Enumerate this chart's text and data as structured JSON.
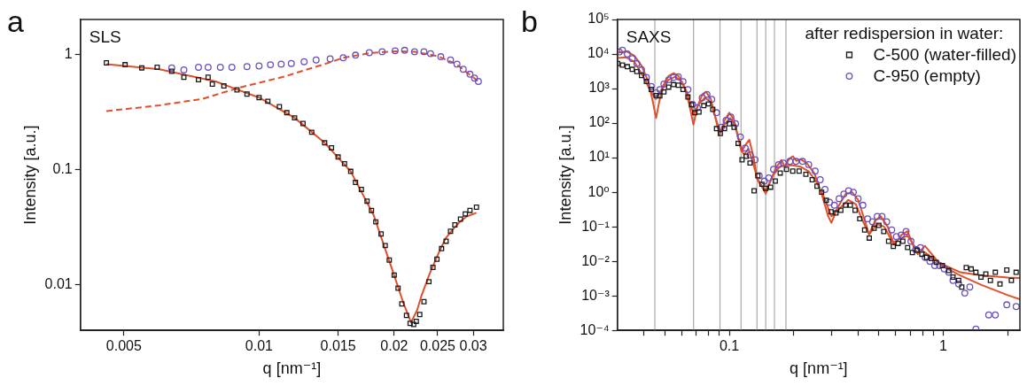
{
  "chart_data": [
    {
      "type": "scatter",
      "title": "SLS",
      "annotations": [
        "a"
      ],
      "xlabel": "q [nm⁻¹]",
      "ylabel": "Intensity [a.u.]",
      "log": "xy",
      "xlim": [
        0.004,
        0.035
      ],
      "ylim": [
        0.004,
        2
      ],
      "xticks": [
        0.005,
        0.01,
        0.015,
        0.02,
        0.025,
        0.03
      ],
      "yticks": [
        0.01,
        0.1,
        1
      ],
      "series": [
        {
          "type": "scatter",
          "marker": "square",
          "color": "#1a1a1a",
          "x": [
            0.00457,
            0.00503,
            0.00548,
            0.00593,
            0.00639,
            0.0068,
            0.00733,
            0.0077,
            0.00787,
            0.00835,
            0.00893,
            0.0094,
            0.01,
            0.01046,
            0.0111,
            0.01153,
            0.012,
            0.01253,
            0.0131,
            0.014,
            0.0145,
            0.015,
            0.0155,
            0.016,
            0.0164,
            0.0169,
            0.0174,
            0.0178,
            0.0182,
            0.0187,
            0.0191,
            0.0195,
            0.02,
            0.0204,
            0.0208,
            0.0213,
            0.0217,
            0.0221,
            0.0224,
            0.0228,
            0.0233,
            0.0239,
            0.0244,
            0.0249,
            0.0255,
            0.0261,
            0.0267,
            0.0273,
            0.0281,
            0.0288,
            0.0295,
            0.0305
          ],
          "values": [
            0.84,
            0.81,
            0.76,
            0.77,
            0.71,
            0.63,
            0.6,
            0.63,
            0.55,
            0.53,
            0.49,
            0.45,
            0.42,
            0.39,
            0.35,
            0.31,
            0.28,
            0.25,
            0.21,
            0.17,
            0.154,
            0.128,
            0.112,
            0.096,
            0.077,
            0.067,
            0.053,
            0.044,
            0.035,
            0.0275,
            0.0218,
            0.0163,
            0.0121,
            0.0093,
            0.0068,
            0.0054,
            0.0046,
            0.0045,
            0.0048,
            0.0055,
            0.0071,
            0.0106,
            0.0141,
            0.0166,
            0.0205,
            0.0238,
            0.029,
            0.033,
            0.037,
            0.041,
            0.044,
            0.047
          ]
        },
        {
          "type": "scatter",
          "marker": "circle",
          "color": "#6b4fbf",
          "x": [
            0.00639,
            0.0068,
            0.00733,
            0.0077,
            0.0082,
            0.0087,
            0.0094,
            0.01,
            0.0106,
            0.0112,
            0.0118,
            0.0126,
            0.0134,
            0.0144,
            0.0154,
            0.0164,
            0.0176,
            0.0188,
            0.0201,
            0.0211,
            0.0222,
            0.0233,
            0.0241,
            0.0254,
            0.0267,
            0.0276,
            0.0285,
            0.0295,
            0.0302,
            0.0308
          ],
          "values": [
            0.76,
            0.73,
            0.77,
            0.77,
            0.77,
            0.77,
            0.78,
            0.79,
            0.81,
            0.82,
            0.83,
            0.86,
            0.89,
            0.91,
            0.93,
            0.98,
            1.03,
            1.05,
            1.07,
            1.08,
            1.05,
            1.05,
            1.01,
            0.95,
            0.89,
            0.82,
            0.74,
            0.67,
            0.62,
            0.58
          ]
        },
        {
          "type": "line",
          "marker": "none",
          "line_style": "solid",
          "color": "#e0502a",
          "x": [
            0.00457,
            0.006,
            0.008,
            0.01,
            0.012,
            0.014,
            0.016,
            0.018,
            0.02,
            0.021,
            0.0218,
            0.0225,
            0.023,
            0.024,
            0.025,
            0.026,
            0.027,
            0.028,
            0.029,
            0.0305
          ],
          "values": [
            0.82,
            0.74,
            0.58,
            0.42,
            0.28,
            0.17,
            0.096,
            0.04,
            0.012,
            0.0068,
            0.0047,
            0.006,
            0.008,
            0.0125,
            0.018,
            0.025,
            0.03,
            0.035,
            0.039,
            0.042
          ]
        },
        {
          "type": "line",
          "marker": "none",
          "line_style": "dashed",
          "color": "#e0502a",
          "x": [
            0.00457,
            0.006,
            0.0075,
            0.009,
            0.0114,
            0.0144,
            0.0154,
            0.0176,
            0.0201,
            0.0222,
            0.025,
            0.0275,
            0.0295,
            0.0308
          ],
          "values": [
            0.32,
            0.36,
            0.41,
            0.51,
            0.64,
            0.85,
            0.93,
            1.02,
            1.06,
            1.05,
            0.96,
            0.82,
            0.66,
            0.58
          ]
        }
      ]
    },
    {
      "type": "scatter",
      "title": "SAXS",
      "annotations": [
        "b"
      ],
      "xlabel": "q [nm⁻¹]",
      "ylabel": "Intensity [a.u.]",
      "log": "xy",
      "legend": "top right",
      "legend_title": "after redispersion in water:",
      "xlim": [
        0.03,
        2.28
      ],
      "ylim": [
        0.0001,
        100000
      ],
      "xticks": [
        {
          "value": 0.04,
          "label": null
        },
        {
          "value": 0.05,
          "label": null
        },
        {
          "value": 0.06,
          "label": null
        },
        {
          "value": 0.07,
          "label": null
        },
        {
          "value": 0.08,
          "label": null
        },
        {
          "value": 0.09,
          "label": null
        },
        0.1,
        {
          "value": 0.2,
          "label": null
        },
        {
          "value": 0.3,
          "label": null
        },
        {
          "value": 0.4,
          "label": null
        },
        {
          "value": 0.5,
          "label": null
        },
        {
          "value": 0.6,
          "label": null
        },
        {
          "value": 0.7,
          "label": null
        },
        {
          "value": 0.8,
          "label": null
        },
        {
          "value": 0.9,
          "label": null
        },
        1,
        {
          "value": 2,
          "label": null
        }
      ],
      "yticks": [
        {
          "value": 0.0001,
          "label": "10⁻⁴"
        },
        {
          "value": 0.001,
          "label": "10⁻³"
        },
        {
          "value": 0.01,
          "label": "10⁻²"
        },
        {
          "value": 0.1,
          "label": "10⁻¹"
        },
        {
          "value": 1,
          "label": "10⁰"
        },
        {
          "value": 10,
          "label": "10¹"
        },
        {
          "value": 100,
          "label": "10²"
        },
        {
          "value": 1000,
          "label": "10³"
        },
        {
          "value": 10000,
          "label": "10⁴"
        },
        {
          "value": 100000,
          "label": "10⁵"
        }
      ],
      "ref_lines": [
        {
          "axis": "x",
          "value": 0.0449,
          "color": "#aaaaaa"
        },
        {
          "axis": "x",
          "value": 0.0681,
          "color": "#aaaaaa"
        },
        {
          "axis": "x",
          "value": 0.0905,
          "color": "#aaaaaa"
        },
        {
          "axis": "x",
          "value": 0.1135,
          "color": "#aaaaaa"
        },
        {
          "axis": "x",
          "value": 0.1347,
          "color": "#aaaaaa"
        },
        {
          "axis": "x",
          "value": 0.148,
          "color": "#aaaaaa"
        },
        {
          "axis": "x",
          "value": 0.1626,
          "color": "#aaaaaa"
        },
        {
          "axis": "x",
          "value": 0.184,
          "color": "#aaaaaa"
        }
      ],
      "series": [
        {
          "type": "scatter",
          "name": "C-500 (water-filled)",
          "marker": "square",
          "color": "#1a1a1a",
          "x": [
            0.0301,
            0.0317,
            0.0334,
            0.0352,
            0.037,
            0.0389,
            0.041,
            0.0432,
            0.0455,
            0.0474,
            0.0495,
            0.0521,
            0.0549,
            0.0578,
            0.0608,
            0.0641,
            0.0667,
            0.069,
            0.0722,
            0.076,
            0.08,
            0.0837,
            0.0872,
            0.0908,
            0.095,
            0.1,
            0.1053,
            0.11,
            0.1147,
            0.12,
            0.125,
            0.1306,
            0.136,
            0.142,
            0.148,
            0.156,
            0.164,
            0.173,
            0.185,
            0.198,
            0.212,
            0.228,
            0.244,
            0.257,
            0.27,
            0.284,
            0.299,
            0.315,
            0.332,
            0.349,
            0.368,
            0.387,
            0.407,
            0.429,
            0.451,
            0.475,
            0.5,
            0.527,
            0.555,
            0.584,
            0.615,
            0.647,
            0.681,
            0.717,
            0.754,
            0.794,
            0.836,
            0.88,
            0.927,
            0.99,
            1.06,
            1.11,
            1.18,
            1.22,
            1.28,
            1.35,
            1.42,
            1.5,
            1.58,
            1.66,
            1.75,
            1.84,
            1.98,
            2.08,
            2.19
          ],
          "values": [
            5300,
            4800,
            4300,
            3600,
            3100,
            2400,
            1600,
            940,
            630,
            620,
            800,
            1100,
            1300,
            1250,
            940,
            570,
            340,
            200,
            210,
            320,
            360,
            250,
            69,
            50,
            69,
            96,
            76,
            26,
            8.7,
            11,
            7,
            1.1,
            3,
            1.7,
            1.3,
            1.4,
            2.1,
            3.6,
            4.6,
            4.1,
            4.1,
            3.3,
            2.3,
            1.5,
            1,
            0.58,
            0.27,
            0.25,
            0.3,
            0.42,
            0.42,
            0.3,
            0.17,
            0.081,
            0.047,
            0.091,
            0.11,
            0.073,
            0.038,
            0.027,
            0.033,
            0.038,
            0.025,
            0.018,
            0.021,
            0.016,
            0.013,
            0.012,
            0.0093,
            0.0075,
            0.0054,
            0.0035,
            0.0028,
            0.0018,
            0.0066,
            0.006,
            0.0048,
            0.0035,
            0.0043,
            0.0028,
            0.0048,
            0.0022,
            0.0056,
            0.0028,
            0.0048
          ]
        },
        {
          "type": "scatter",
          "name": "C-950 (empty)",
          "marker": "circle",
          "color": "#6b4fbf",
          "x": [
            0.0306,
            0.0317,
            0.0334,
            0.0352,
            0.037,
            0.0389,
            0.041,
            0.0432,
            0.0455,
            0.0474,
            0.0495,
            0.0521,
            0.0549,
            0.0578,
            0.0608,
            0.0641,
            0.0674,
            0.071,
            0.0747,
            0.0787,
            0.0828,
            0.0872,
            0.0918,
            0.0966,
            0.1017,
            0.107,
            0.1127,
            0.1187,
            0.125,
            0.132,
            0.138,
            0.146,
            0.153,
            0.161,
            0.17,
            0.179,
            0.192,
            0.205,
            0.22,
            0.235,
            0.252,
            0.266,
            0.28,
            0.294,
            0.31,
            0.326,
            0.343,
            0.361,
            0.38,
            0.4,
            0.421,
            0.443,
            0.467,
            0.491,
            0.517,
            0.544,
            0.574,
            0.604,
            0.636,
            0.67,
            0.706,
            0.743,
            0.782,
            0.823,
            0.866,
            0.912,
            0.96,
            1.01,
            1.06,
            1.11,
            1.18,
            1.26,
            1.33,
            1.42,
            1.63,
            1.75,
            1.98,
            2.19
          ],
          "values": [
            11500,
            13000,
            10000,
            7400,
            5300,
            3500,
            2100,
            1150,
            760,
            940,
            1350,
            1800,
            2100,
            2200,
            1600,
            940,
            350,
            280,
            540,
            680,
            490,
            200,
            76,
            120,
            150,
            96,
            40,
            19,
            12,
            8.7,
            3,
            2.1,
            2.6,
            4.6,
            6.3,
            7,
            7.8,
            7.8,
            7.8,
            6.3,
            4.1,
            2.3,
            1.2,
            0.51,
            0.42,
            0.65,
            0.89,
            1.1,
            1,
            0.65,
            0.42,
            0.17,
            0.14,
            0.2,
            0.2,
            0.14,
            0.081,
            0.052,
            0.058,
            0.073,
            0.038,
            0.022,
            0.025,
            0.013,
            0.01,
            0.0075,
            0.0075,
            0.006,
            0.0048,
            0.0028,
            0.0022,
            0.0012,
            0.0018,
            0.00011,
            0.00028,
            0.00028,
            0.00055,
            0.00049
          ]
        },
        {
          "type": "line",
          "marker": "none",
          "line_style": "solid",
          "color": "#e0502a",
          "x": [
            0.03,
            0.033,
            0.036,
            0.039,
            0.042,
            0.044,
            0.0455,
            0.047,
            0.049,
            0.052,
            0.055,
            0.058,
            0.062,
            0.065,
            0.068,
            0.071,
            0.075,
            0.078,
            0.082,
            0.086,
            0.09,
            0.095,
            0.1,
            0.105,
            0.11,
            0.114,
            0.12,
            0.124,
            0.13,
            0.135,
            0.141,
            0.148,
            0.155,
            0.165,
            0.175,
            0.182,
            0.19,
            0.198,
            0.206,
            0.215,
            0.23,
            0.25,
            0.27,
            0.29,
            0.3,
            0.32,
            0.35,
            0.375,
            0.4,
            0.43,
            0.45,
            0.48,
            0.51,
            0.55,
            0.59,
            0.64,
            0.68,
            0.73,
            0.76,
            0.82,
            0.87,
            0.93,
            1,
            1.2,
            1.5,
            2,
            2.28
          ],
          "values": [
            11000,
            12000,
            9000,
            4500,
            1500,
            400,
            140,
            400,
            1200,
            2300,
            2800,
            2300,
            1000,
            350,
            90,
            300,
            700,
            800,
            500,
            150,
            45,
            120,
            200,
            130,
            40,
            15,
            25,
            33,
            10,
            2.5,
            1.6,
            0.9,
            2,
            5,
            8.5,
            5.5,
            9,
            11,
            8,
            9,
            7,
            3.5,
            0.9,
            0.2,
            0.13,
            0.35,
            0.9,
            1,
            0.6,
            0.15,
            0.06,
            0.15,
            0.2,
            0.1,
            0.03,
            0.06,
            0.075,
            0.025,
            0.016,
            0.028,
            0.018,
            0.011,
            0.007,
            0.0039,
            0.0021,
            0.00105,
            0.00079
          ]
        },
        {
          "type": "line",
          "marker": "none",
          "line_style": "solid",
          "color": "#e0502a",
          "x": [
            0.03,
            0.033,
            0.036,
            0.04,
            0.043,
            0.0455,
            0.048,
            0.052,
            0.056,
            0.06,
            0.064,
            0.068,
            0.072,
            0.077,
            0.082,
            0.087,
            0.091,
            0.096,
            0.101,
            0.106,
            0.112,
            0.117,
            0.123,
            0.13,
            0.136,
            0.145,
            0.15,
            0.16,
            0.172,
            0.185,
            0.198,
            0.215,
            0.235,
            0.255,
            0.275,
            0.3,
            0.33,
            0.36,
            0.39,
            0.42,
            0.45,
            0.49,
            0.53,
            0.58,
            0.63,
            0.68,
            0.74,
            0.8,
            0.87,
            0.93,
            1,
            1.2,
            1.5,
            2,
            2.28
          ],
          "values": [
            7700,
            8000,
            6000,
            2000,
            800,
            500,
            900,
            1800,
            2200,
            1600,
            700,
            180,
            350,
            550,
            400,
            120,
            55,
            100,
            140,
            90,
            25,
            12,
            18,
            6,
            2.2,
            1.2,
            1.3,
            3,
            5.5,
            6,
            6,
            5.5,
            4,
            2,
            0.8,
            0.2,
            0.35,
            0.6,
            0.45,
            0.15,
            0.06,
            0.12,
            0.1,
            0.035,
            0.045,
            0.055,
            0.025,
            0.02,
            0.014,
            0.01,
            0.008,
            0.0048,
            0.0039,
            0.0034,
            0.0033
          ]
        }
      ]
    }
  ]
}
